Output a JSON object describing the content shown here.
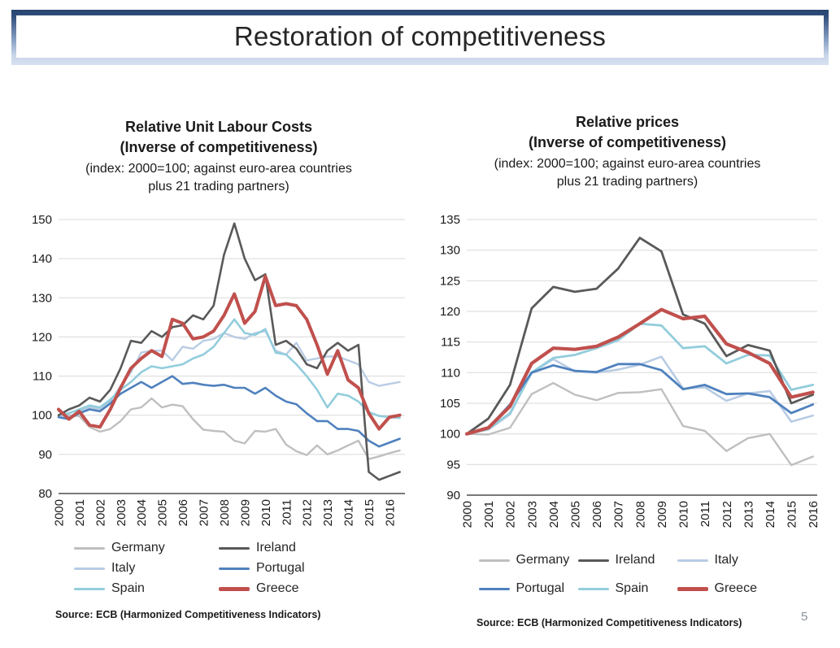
{
  "slide": {
    "title": "Restoration of competitiveness",
    "page_number": "5"
  },
  "charts": [
    {
      "title": "Relative Unit Labour Costs",
      "subtitle": "(Inverse of competitiveness)",
      "note": "(index: 2000=100; against euro-area countries plus 21 trading partners)",
      "source": "Source: ECB (Harmonized Competitiveness Indicators)",
      "chart_data": {
        "type": "line",
        "x_start": 2000,
        "x_step": 0.5,
        "x_max": 2016.75,
        "x_tick_labels": [
          "2000",
          "2001",
          "2002",
          "2003",
          "2004",
          "2005",
          "2006",
          "2007",
          "2008",
          "2009",
          "2010",
          "2011",
          "2012",
          "2013",
          "2014",
          "2015",
          "2016"
        ],
        "ylim": [
          80,
          150
        ],
        "ytick_step": 10,
        "grid": true,
        "legend_position": "bottom",
        "legend_columns": 2,
        "draw_order": [
          0,
          2,
          4,
          3,
          1,
          5
        ],
        "series": [
          {
            "name": "Germany",
            "color": "#bfbfbf",
            "width": 2.4,
            "values": [
              101,
              100,
              99.8,
              97,
              95.8,
              96.5,
              98.5,
              101.5,
              102,
              104.3,
              102,
              102.7,
              102.3,
              99,
              96.3,
              96,
              95.8,
              93.5,
              92.8,
              96,
              95.8,
              96.5,
              92.5,
              90.8,
              89.8,
              92.3,
              90,
              91,
              92.3,
              93.5,
              88.8,
              89.5,
              90.3,
              91
            ]
          },
          {
            "name": "Ireland",
            "color": "#595959",
            "width": 2.6,
            "values": [
              100,
              101.5,
              102.5,
              104.5,
              103.5,
              106.5,
              112,
              119,
              118.5,
              121.5,
              120,
              122.5,
              123,
              125.5,
              124.5,
              128,
              141,
              149,
              140,
              134.5,
              136,
              118,
              119,
              117,
              113,
              112,
              116.5,
              118.5,
              116.5,
              118,
              85.5,
              83.5,
              84.5,
              85.5
            ]
          },
          {
            "name": "Italy",
            "color": "#b8cce4",
            "width": 2.4,
            "values": [
              100,
              99.5,
              101,
              102,
              101.5,
              103.5,
              107.5,
              111,
              116,
              116.5,
              116.5,
              114,
              117.5,
              117,
              119,
              119.5,
              121,
              120,
              119.5,
              121,
              121.5,
              116.5,
              115.5,
              118.5,
              114,
              114.5,
              115,
              115,
              114,
              113,
              108.5,
              107.5,
              108,
              108.5
            ]
          },
          {
            "name": "Portugal",
            "color": "#4f81bd",
            "width": 2.6,
            "values": [
              99.5,
              99,
              100.5,
              101.5,
              101,
              103,
              105.5,
              107,
              108.5,
              107,
              108.5,
              110,
              108,
              108.3,
              107.8,
              107.5,
              107.8,
              107,
              107,
              105.5,
              107,
              105,
              103.5,
              102.8,
              100.5,
              98.5,
              98.5,
              96.5,
              96.5,
              96,
              93.5,
              92,
              93,
              94
            ]
          },
          {
            "name": "Spain",
            "color": "#92cddc",
            "width": 2.6,
            "values": [
              100,
              100.5,
              101.5,
              102.5,
              102,
              104,
              106.5,
              108.5,
              111,
              112.5,
              112,
              112.5,
              113,
              114.5,
              115.5,
              117.5,
              121,
              124.5,
              121,
              120.5,
              122,
              116,
              115.5,
              113,
              110,
              106.5,
              102,
              105.5,
              105,
              103.5,
              100.8,
              99.8,
              99.5,
              99.3
            ]
          },
          {
            "name": "Greece",
            "color": "#c0504d",
            "width": 4,
            "values": [
              101.5,
              99,
              101,
              97.5,
              97,
              101.5,
              107,
              112,
              114.5,
              116.5,
              115,
              124.5,
              123.5,
              119.5,
              120,
              121.5,
              125.5,
              131,
              123.5,
              126.5,
              135.5,
              128,
              128.5,
              128,
              124.5,
              118,
              110.5,
              116.5,
              109,
              107,
              100.5,
              96.5,
              99.5,
              100
            ]
          }
        ]
      }
    },
    {
      "title": "Relative prices",
      "subtitle": "(Inverse of competitiveness)",
      "note": "(index: 2000=100; against euro-area countries plus 21 trading partners)",
      "source": "Source: ECB (Harmonized Competitiveness Indicators)",
      "chart_data": {
        "type": "line",
        "x_start": 2000,
        "x_step": 1,
        "x_max": 2016.2,
        "x_tick_labels": [
          "2000",
          "2001",
          "2002",
          "2003",
          "2004",
          "2005",
          "2006",
          "2007",
          "2008",
          "2009",
          "2010",
          "2011",
          "2012",
          "2013",
          "2014",
          "2015",
          "2016"
        ],
        "ylim": [
          90,
          135
        ],
        "ytick_step": 5,
        "grid": true,
        "legend_position": "bottom",
        "legend_columns": 3,
        "draw_order": [
          0,
          2,
          4,
          3,
          1,
          5
        ],
        "series": [
          {
            "name": "Germany",
            "color": "#bfbfbf",
            "width": 2.4,
            "values": [
              100,
              99.9,
              101,
              106.5,
              108.3,
              106.4,
              105.5,
              106.7,
              106.8,
              107.3,
              101.3,
              100.5,
              97.2,
              99.3,
              100,
              94.9,
              96.3
            ]
          },
          {
            "name": "Ireland",
            "color": "#595959",
            "width": 2.8,
            "values": [
              100,
              102.5,
              108,
              120.5,
              124,
              123.2,
              123.7,
              127,
              132,
              129.8,
              119.5,
              118,
              112.7,
              114.5,
              113.6,
              105,
              106.4
            ]
          },
          {
            "name": "Italy",
            "color": "#b8cce4",
            "width": 2.6,
            "values": [
              100,
              100.7,
              103.2,
              110,
              112.2,
              110.2,
              110,
              110.5,
              111.3,
              112.6,
              107.4,
              107.6,
              105.4,
              106.6,
              107,
              102,
              103
            ]
          },
          {
            "name": "Portugal",
            "color": "#4f81bd",
            "width": 2.8,
            "values": [
              100,
              101,
              104.8,
              110,
              111.2,
              110.3,
              110.1,
              111.4,
              111.4,
              110.4,
              107.3,
              108,
              106.5,
              106.6,
              106,
              103.4,
              104.8
            ]
          },
          {
            "name": "Spain",
            "color": "#92cddc",
            "width": 2.8,
            "values": [
              100,
              100.8,
              103.4,
              110,
              112.4,
              112.9,
              114,
              115.3,
              118,
              117.7,
              114,
              114.3,
              111.5,
              112.9,
              112.8,
              107.2,
              108
            ]
          },
          {
            "name": "Greece",
            "color": "#c0504d",
            "width": 4.2,
            "values": [
              100,
              101,
              104.5,
              111.5,
              114,
              113.8,
              114.3,
              115.8,
              118,
              120.3,
              118.8,
              119.2,
              114.7,
              113.3,
              111.5,
              106,
              106.8
            ]
          }
        ]
      }
    }
  ]
}
